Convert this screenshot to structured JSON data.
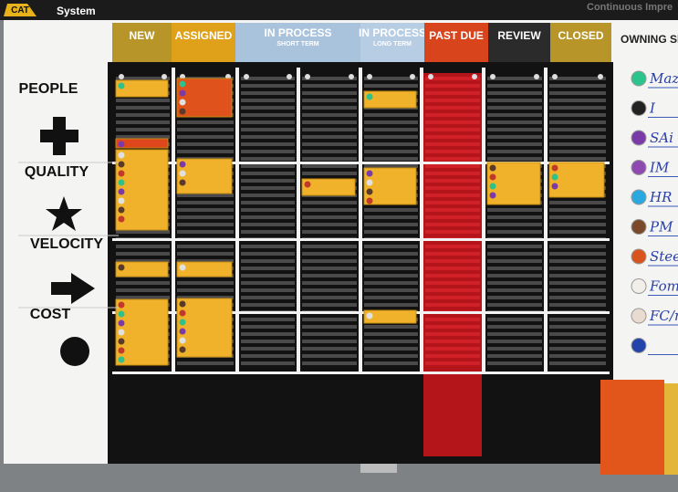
{
  "header": {
    "logo": "CAT",
    "brand": "System",
    "banner": "Continuous Impre"
  },
  "columns": [
    {
      "title": "NEW"
    },
    {
      "title": "ASSIGNED"
    },
    {
      "title": "IN PROCESS",
      "subtitle": "SHORT TERM"
    },
    {
      "title": "IN PROCESS",
      "subtitle": "LONG TERM"
    },
    {
      "title": "PAST DUE"
    },
    {
      "title": "REVIEW"
    },
    {
      "title": "CLOSED"
    }
  ],
  "row_labels": [
    "PEOPLE",
    "QUALITY",
    "VELOCITY",
    "COST"
  ],
  "owners": {
    "title": "OWNING SI",
    "names": [
      "Maz",
      "I",
      "SAi",
      "IM",
      "HR",
      "PM",
      "Steeri",
      "Fom/L",
      "FC/m"
    ]
  }
}
